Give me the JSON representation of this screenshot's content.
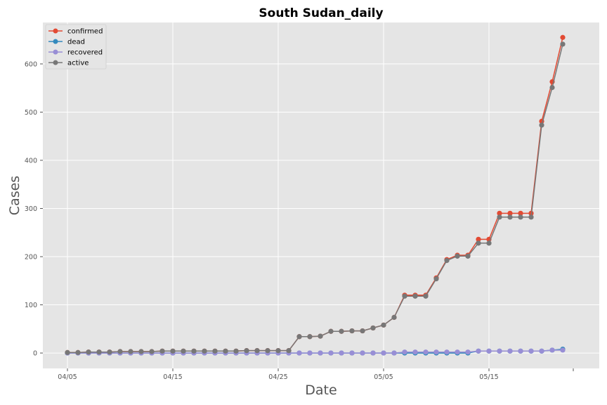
{
  "chart_data": {
    "type": "line",
    "title": "South Sudan_daily",
    "xlabel": "Date",
    "ylabel": "Cases",
    "x": [
      "04/05",
      "04/06",
      "04/07",
      "04/08",
      "04/09",
      "04/10",
      "04/11",
      "04/12",
      "04/13",
      "04/14",
      "04/15",
      "04/16",
      "04/17",
      "04/18",
      "04/19",
      "04/20",
      "04/21",
      "04/22",
      "04/23",
      "04/24",
      "04/25",
      "04/26",
      "04/27",
      "04/28",
      "04/29",
      "04/30",
      "05/01",
      "05/02",
      "05/03",
      "05/04",
      "05/05",
      "05/06",
      "05/07",
      "05/08",
      "05/09",
      "05/10",
      "05/11",
      "05/12",
      "05/13",
      "05/14",
      "05/15",
      "05/16",
      "05/17",
      "05/18",
      "05/19",
      "05/20",
      "05/21",
      "05/22",
      "05/23"
    ],
    "x_ticks": [
      "04/05",
      "04/15",
      "04/25",
      "05/05",
      "05/15"
    ],
    "y_ticks": [
      0,
      100,
      200,
      300,
      400,
      500,
      600
    ],
    "ylim": [
      -32,
      686
    ],
    "grid": true,
    "legend_position": "top-left",
    "series": [
      {
        "name": "confirmed",
        "color": "#E24A33",
        "values": [
          1,
          1,
          2,
          2,
          2,
          3,
          3,
          3,
          3,
          4,
          4,
          4,
          4,
          4,
          4,
          4,
          4,
          5,
          5,
          5,
          5,
          5,
          34,
          34,
          35,
          45,
          45,
          46,
          46,
          52,
          58,
          74,
          120,
          120,
          120,
          156,
          194,
          203,
          203,
          236,
          236,
          290,
          290,
          290,
          290,
          481,
          563,
          655,
          null
        ]
      },
      {
        "name": "dead",
        "color": "#348ABD",
        "values": [
          0,
          0,
          0,
          0,
          0,
          0,
          0,
          0,
          0,
          0,
          0,
          0,
          0,
          0,
          0,
          0,
          0,
          0,
          0,
          0,
          0,
          0,
          0,
          0,
          0,
          0,
          0,
          0,
          0,
          0,
          0,
          0,
          0,
          0,
          0,
          0,
          0,
          0,
          0,
          4,
          4,
          4,
          4,
          4,
          4,
          4,
          6,
          8,
          null
        ]
      },
      {
        "name": "recovered",
        "color": "#988ED5",
        "values": [
          0,
          0,
          0,
          0,
          0,
          0,
          0,
          0,
          0,
          0,
          0,
          0,
          0,
          0,
          0,
          0,
          0,
          0,
          0,
          0,
          0,
          0,
          0,
          0,
          0,
          0,
          0,
          0,
          0,
          0,
          0,
          0,
          2,
          2,
          2,
          2,
          2,
          2,
          2,
          4,
          4,
          4,
          4,
          4,
          4,
          4,
          6,
          6,
          null
        ]
      },
      {
        "name": "active",
        "color": "#777777",
        "values": [
          1,
          1,
          2,
          2,
          2,
          3,
          3,
          3,
          3,
          4,
          4,
          4,
          4,
          4,
          4,
          4,
          4,
          5,
          5,
          5,
          5,
          5,
          34,
          34,
          35,
          45,
          45,
          46,
          46,
          52,
          58,
          74,
          118,
          118,
          118,
          154,
          192,
          201,
          201,
          228,
          228,
          282,
          282,
          282,
          282,
          473,
          551,
          641,
          null
        ]
      }
    ]
  }
}
